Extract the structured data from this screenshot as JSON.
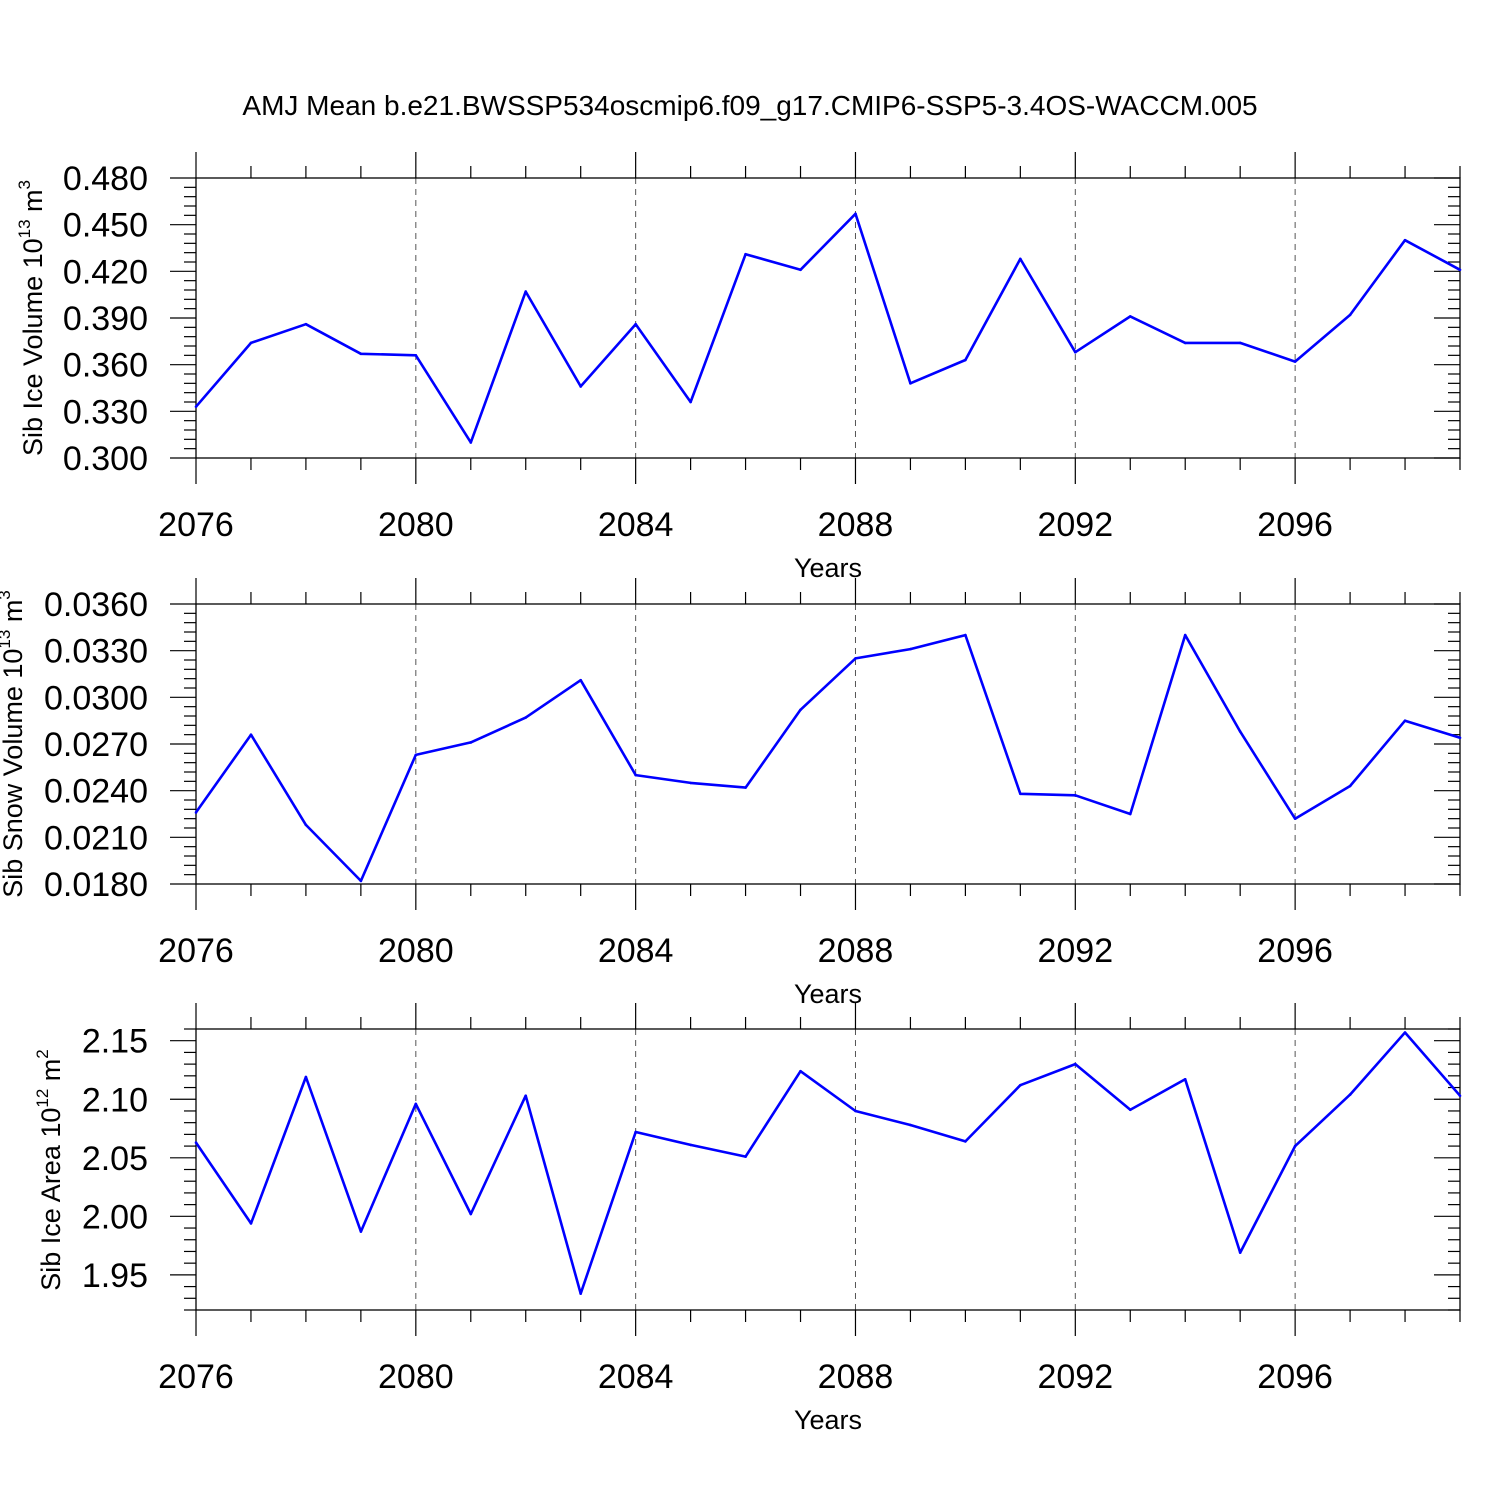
{
  "title": "AMJ Mean b.e21.BWSSP534oscmip6.f09_g17.CMIP6-SSP5-3.4OS-WACCM.005",
  "chart_data": [
    {
      "type": "line",
      "ylabel": {
        "text": "Sib Ice Volume 10",
        "exp": "13",
        "unit": " m",
        "unit_exp": "3"
      },
      "xlabel": "Years",
      "xlim": [
        2076,
        2099
      ],
      "ylim": [
        0.3,
        0.48
      ],
      "xticks": [
        "2076",
        "2080",
        "2084",
        "2088",
        "2092",
        "2096"
      ],
      "yticks": [
        "0.300",
        "0.330",
        "0.360",
        "0.390",
        "0.420",
        "0.450",
        "0.480"
      ],
      "line_color": "#0000ff",
      "grid": "dashed vertical at labeled years",
      "x": [
        2076,
        2077,
        2078,
        2079,
        2080,
        2081,
        2082,
        2083,
        2084,
        2085,
        2086,
        2087,
        2088,
        2089,
        2090,
        2091,
        2092,
        2093,
        2094,
        2095,
        2096,
        2097,
        2098,
        2099
      ],
      "values": [
        0.333,
        0.374,
        0.386,
        0.367,
        0.366,
        0.31,
        0.407,
        0.346,
        0.386,
        0.336,
        0.431,
        0.421,
        0.457,
        0.348,
        0.363,
        0.428,
        0.368,
        0.391,
        0.374,
        0.374,
        0.362,
        0.392,
        0.44,
        0.421
      ]
    },
    {
      "type": "line",
      "ylabel": {
        "text": "Sib Snow Volume 10",
        "exp": "13",
        "unit": " m",
        "unit_exp": "3"
      },
      "xlabel": "Years",
      "xlim": [
        2076,
        2099
      ],
      "ylim": [
        0.018,
        0.036
      ],
      "xticks": [
        "2076",
        "2080",
        "2084",
        "2088",
        "2092",
        "2096"
      ],
      "yticks": [
        "0.0180",
        "0.0210",
        "0.0240",
        "0.0270",
        "0.0300",
        "0.0330",
        "0.0360"
      ],
      "line_color": "#0000ff",
      "grid": "dashed vertical at labeled years",
      "x": [
        2076,
        2077,
        2078,
        2079,
        2080,
        2081,
        2082,
        2083,
        2084,
        2085,
        2086,
        2087,
        2088,
        2089,
        2090,
        2091,
        2092,
        2093,
        2094,
        2095,
        2096,
        2097,
        2098,
        2099
      ],
      "values": [
        0.0226,
        0.0276,
        0.0218,
        0.0182,
        0.0263,
        0.0271,
        0.0287,
        0.0311,
        0.025,
        0.0245,
        0.0242,
        0.0292,
        0.0325,
        0.0331,
        0.034,
        0.0238,
        0.0237,
        0.0225,
        0.034,
        0.0278,
        0.0222,
        0.0243,
        0.0285,
        0.0274
      ]
    },
    {
      "type": "line",
      "ylabel": {
        "text": "Sib Ice Area 10",
        "exp": "12",
        "unit": " m",
        "unit_exp": "2"
      },
      "xlabel": "Years",
      "xlim": [
        2076,
        2099
      ],
      "ylim": [
        1.92,
        2.16
      ],
      "xticks": [
        "2076",
        "2080",
        "2084",
        "2088",
        "2092",
        "2096"
      ],
      "yticks": [
        "1.95",
        "2.00",
        "2.05",
        "2.10",
        "2.15"
      ],
      "ytick_values": [
        1.95,
        2.0,
        2.05,
        2.1,
        2.15
      ],
      "line_color": "#0000ff",
      "grid": "dashed vertical at labeled years",
      "x": [
        2076,
        2077,
        2078,
        2079,
        2080,
        2081,
        2082,
        2083,
        2084,
        2085,
        2086,
        2087,
        2088,
        2089,
        2090,
        2091,
        2092,
        2093,
        2094,
        2095,
        2096,
        2097,
        2098,
        2099
      ],
      "values": [
        2.063,
        1.994,
        2.119,
        1.987,
        2.096,
        2.002,
        2.103,
        1.934,
        2.072,
        2.061,
        2.051,
        2.124,
        2.09,
        2.078,
        2.064,
        2.112,
        2.13,
        2.091,
        2.117,
        1.969,
        2.06,
        2.104,
        2.157,
        2.103
      ]
    }
  ]
}
